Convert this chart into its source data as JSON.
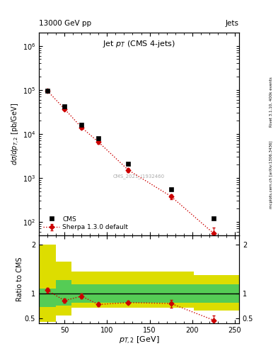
{
  "header_left": "13000 GeV pp",
  "header_right": "Jets",
  "title": "Jet $p_T$ (CMS 4-jets)",
  "watermark": "CMS_2021_I1932460",
  "right_label_top": "Rivet 3.1.10, 400k events",
  "right_label_mid": "mcplots.cern.ch [arXiv:1306.3436]",
  "cms_x": [
    30,
    50,
    70,
    90,
    125,
    175,
    225
  ],
  "cms_y": [
    95000,
    43000,
    16000,
    8000,
    2100,
    550,
    120
  ],
  "sherpa_x": [
    30,
    50,
    70,
    90,
    125,
    175,
    225
  ],
  "sherpa_y": [
    95000,
    37000,
    14000,
    6500,
    1500,
    380,
    55
  ],
  "sherpa_yerr": [
    5000,
    2000,
    1000,
    500,
    150,
    50,
    20
  ],
  "ratio_x": [
    30,
    50,
    70,
    90,
    125,
    175,
    225
  ],
  "ratio_y": [
    1.07,
    0.86,
    0.95,
    0.78,
    0.82,
    0.8,
    0.46
  ],
  "ratio_yerr_lo": [
    0.05,
    0.05,
    0.05,
    0.04,
    0.04,
    0.08,
    0.15
  ],
  "ratio_yerr_hi": [
    0.05,
    0.05,
    0.05,
    0.04,
    0.04,
    0.08,
    0.1
  ],
  "xlim": [
    20,
    255
  ],
  "ylim_main": [
    50,
    2000000
  ],
  "ylim_ratio": [
    0.4,
    2.2
  ],
  "cms_color": "#000000",
  "sherpa_color": "#cc0000",
  "green_color": "#55cc55",
  "yellow_color": "#dddd00"
}
